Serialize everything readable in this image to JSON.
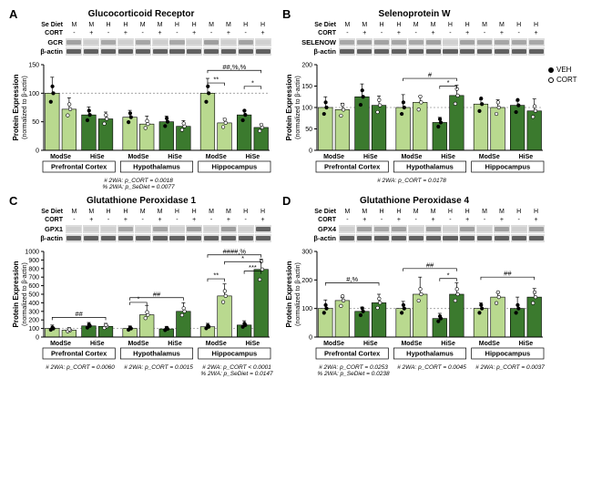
{
  "global": {
    "colors": {
      "modse_bar": "#b9d98f",
      "hise_bar": "#3b7a2e",
      "veh_dot_fill": "#000000",
      "cort_dot_fill": "#ffffff",
      "dot_stroke": "#000000",
      "axis": "#000000",
      "baseline_ref": "#9a9a9a",
      "band_dark": "#505050",
      "band_mid": "#8a8a8a",
      "band_light": "#c4c4c4",
      "lane_bg": "#dddddd"
    },
    "legend": {
      "veh": "VEH",
      "cort": "CORT"
    },
    "blot_headers": {
      "se_diet_label": "Se Diet",
      "cort_label": "CORT",
      "se_diet_cells": [
        "M",
        "M",
        "H",
        "H",
        "M",
        "M",
        "H",
        "H",
        "M",
        "M",
        "H",
        "H"
      ],
      "cort_cells": [
        "-",
        "+",
        "-",
        "+",
        "-",
        "+",
        "-",
        "+",
        "-",
        "+",
        "-",
        "+"
      ]
    },
    "diet_labels": [
      "ModSe",
      "HiSe",
      "ModSe",
      "HiSe",
      "ModSe",
      "HiSe"
    ],
    "region_labels": [
      "Prefrontal Cortex",
      "Hypothalamus",
      "Hippocampus"
    ],
    "ylabel_line1": "Protein Expression",
    "ylabel_line2": "(normalized to β-actin)",
    "baseline_ref_value": 100
  },
  "panels": {
    "A": {
      "letter": "A",
      "title": "Glucocorticoid Receptor",
      "blot_rows": [
        {
          "name": "GCR",
          "intensities": [
            0.55,
            0.35,
            0.4,
            0.3,
            0.45,
            0.35,
            0.4,
            0.3,
            0.6,
            0.3,
            0.5,
            0.25
          ]
        },
        {
          "name": "β-actin",
          "intensities": [
            0.8,
            0.8,
            0.8,
            0.8,
            0.8,
            0.8,
            0.8,
            0.8,
            0.8,
            0.8,
            0.8,
            0.8
          ]
        }
      ],
      "y_max": 150,
      "y_ticks": [
        0,
        50,
        100,
        150
      ],
      "groups": [
        {
          "mean": 100,
          "sd": 28,
          "se": "Mod",
          "cort": "-"
        },
        {
          "mean": 72,
          "sd": 20,
          "se": "Mod",
          "cort": "+"
        },
        {
          "mean": 62,
          "sd": 14,
          "se": "Hi",
          "cort": "-"
        },
        {
          "mean": 55,
          "sd": 12,
          "se": "Hi",
          "cort": "+"
        },
        {
          "mean": 58,
          "sd": 12,
          "se": "Mod",
          "cort": "-"
        },
        {
          "mean": 46,
          "sd": 14,
          "se": "Mod",
          "cort": "+"
        },
        {
          "mean": 50,
          "sd": 10,
          "se": "Hi",
          "cort": "-"
        },
        {
          "mean": 42,
          "sd": 10,
          "se": "Hi",
          "cort": "+"
        },
        {
          "mean": 100,
          "sd": 26,
          "se": "Mod",
          "cort": "-"
        },
        {
          "mean": 48,
          "sd": 8,
          "se": "Mod",
          "cort": "+"
        },
        {
          "mean": 62,
          "sd": 8,
          "se": "Hi",
          "cort": "-"
        },
        {
          "mean": 40,
          "sd": 6,
          "se": "Hi",
          "cort": "+"
        }
      ],
      "sig": [
        {
          "from": 8,
          "to": 11,
          "y": 140,
          "label": "##,%,%"
        },
        {
          "from": 8,
          "to": 9,
          "y": 118,
          "label": "**"
        },
        {
          "from": 10,
          "to": 11,
          "y": 112,
          "label": "*"
        }
      ],
      "stats": [
        "# 2WA: p_CORT = 0.0018",
        "% 2WA: p_SeDiet = 0.0077"
      ]
    },
    "B": {
      "letter": "B",
      "title": "Selenoprotein W",
      "blot_rows": [
        {
          "name": "SELENOW",
          "intensities": [
            0.4,
            0.5,
            0.5,
            0.45,
            0.4,
            0.55,
            0.25,
            0.5,
            0.45,
            0.45,
            0.45,
            0.4
          ]
        },
        {
          "name": "β-actin",
          "intensities": [
            0.8,
            0.8,
            0.8,
            0.8,
            0.8,
            0.8,
            0.8,
            0.8,
            0.8,
            0.8,
            0.8,
            0.8
          ]
        }
      ],
      "y_max": 200,
      "y_ticks": [
        0,
        50,
        100,
        150,
        200
      ],
      "groups": [
        {
          "mean": 100,
          "sd": 25,
          "se": "Mod",
          "cort": "-"
        },
        {
          "mean": 95,
          "sd": 15,
          "se": "Mod",
          "cort": "+"
        },
        {
          "mean": 125,
          "sd": 30,
          "se": "Hi",
          "cort": "-"
        },
        {
          "mean": 105,
          "sd": 22,
          "se": "Hi",
          "cort": "+"
        },
        {
          "mean": 100,
          "sd": 30,
          "se": "Mod",
          "cort": "-"
        },
        {
          "mean": 112,
          "sd": 15,
          "se": "Mod",
          "cort": "+"
        },
        {
          "mean": 65,
          "sd": 12,
          "se": "Hi",
          "cort": "-"
        },
        {
          "mean": 128,
          "sd": 24,
          "se": "Hi",
          "cort": "+"
        },
        {
          "mean": 108,
          "sd": 10,
          "se": "Mod",
          "cort": "-"
        },
        {
          "mean": 100,
          "sd": 18,
          "se": "Mod",
          "cort": "+"
        },
        {
          "mean": 105,
          "sd": 10,
          "se": "Hi",
          "cort": "-"
        },
        {
          "mean": 92,
          "sd": 28,
          "se": "Hi",
          "cort": "+"
        }
      ],
      "sig": [
        {
          "from": 4,
          "to": 7,
          "y": 168,
          "label": "#"
        },
        {
          "from": 6,
          "to": 7,
          "y": 150,
          "label": "*"
        }
      ],
      "stats": [
        "# 2WA: p_CORT = 0.0178"
      ]
    },
    "C": {
      "letter": "C",
      "title": "Glutathione Peroxidase 1",
      "blot_rows": [
        {
          "name": "GPX1",
          "intensities": [
            0.2,
            0.35,
            0.25,
            0.4,
            0.2,
            0.45,
            0.25,
            0.55,
            0.25,
            0.6,
            0.2,
            0.75
          ]
        },
        {
          "name": "β-actin",
          "intensities": [
            0.8,
            0.8,
            0.8,
            0.8,
            0.8,
            0.8,
            0.8,
            0.8,
            0.8,
            0.8,
            0.8,
            0.8
          ]
        }
      ],
      "y_max": 1000,
      "y_ticks": [
        0,
        100,
        200,
        300,
        400,
        500,
        600,
        700,
        800,
        900,
        1000
      ],
      "groups": [
        {
          "mean": 100,
          "sd": 40,
          "se": "Mod",
          "cort": "-"
        },
        {
          "mean": 80,
          "sd": 30,
          "se": "Mod",
          "cort": "+"
        },
        {
          "mean": 130,
          "sd": 40,
          "se": "Hi",
          "cort": "-"
        },
        {
          "mean": 125,
          "sd": 35,
          "se": "Hi",
          "cort": "+"
        },
        {
          "mean": 100,
          "sd": 30,
          "se": "Mod",
          "cort": "-"
        },
        {
          "mean": 260,
          "sd": 110,
          "se": "Mod",
          "cort": "+"
        },
        {
          "mean": 95,
          "sd": 30,
          "se": "Hi",
          "cort": "-"
        },
        {
          "mean": 300,
          "sd": 100,
          "se": "Hi",
          "cort": "+"
        },
        {
          "mean": 120,
          "sd": 40,
          "se": "Mod",
          "cort": "-"
        },
        {
          "mean": 480,
          "sd": 140,
          "se": "Mod",
          "cort": "+"
        },
        {
          "mean": 140,
          "sd": 50,
          "se": "Hi",
          "cort": "-"
        },
        {
          "mean": 790,
          "sd": 120,
          "se": "Hi",
          "cort": "+"
        }
      ],
      "sig": [
        {
          "from": 0,
          "to": 3,
          "y": 230,
          "label": "##"
        },
        {
          "from": 4,
          "to": 7,
          "y": 460,
          "label": "##"
        },
        {
          "from": 4,
          "to": 5,
          "y": 405,
          "label": "*"
        },
        {
          "from": 8,
          "to": 11,
          "y": 960,
          "label": "####,%"
        },
        {
          "from": 9,
          "to": 11,
          "y": 880,
          "label": "*"
        },
        {
          "from": 8,
          "to": 9,
          "y": 680,
          "label": "**"
        },
        {
          "from": 10,
          "to": 11,
          "y": 770,
          "label": "***"
        }
      ],
      "stats": [
        "# 2WA: p_CORT = 0.0060",
        "# 2WA: p_CORT = 0.0015",
        "# 2WA: p_CORT < 0.0001",
        "% 2WA: p_SeDiet = 0.0147"
      ],
      "stats_cols": [
        [
          0
        ],
        [
          1
        ],
        [
          2,
          3
        ]
      ]
    },
    "D": {
      "letter": "D",
      "title": "Glutathione Peroxidase 4",
      "blot_rows": [
        {
          "name": "GPX4",
          "intensities": [
            0.35,
            0.5,
            0.4,
            0.5,
            0.35,
            0.55,
            0.3,
            0.55,
            0.35,
            0.55,
            0.3,
            0.55
          ]
        },
        {
          "name": "β-actin",
          "intensities": [
            0.8,
            0.8,
            0.8,
            0.8,
            0.8,
            0.8,
            0.8,
            0.8,
            0.8,
            0.8,
            0.8,
            0.8
          ]
        }
      ],
      "y_max": 300,
      "y_ticks": [
        0,
        100,
        200,
        300
      ],
      "groups": [
        {
          "mean": 100,
          "sd": 30,
          "se": "Mod",
          "cort": "-"
        },
        {
          "mean": 128,
          "sd": 10,
          "se": "Mod",
          "cort": "+"
        },
        {
          "mean": 90,
          "sd": 15,
          "se": "Hi",
          "cort": "-"
        },
        {
          "mean": 120,
          "sd": 30,
          "se": "Hi",
          "cort": "+"
        },
        {
          "mean": 100,
          "sd": 25,
          "se": "Mod",
          "cort": "-"
        },
        {
          "mean": 150,
          "sd": 60,
          "se": "Mod",
          "cort": "+"
        },
        {
          "mean": 65,
          "sd": 18,
          "se": "Hi",
          "cort": "-"
        },
        {
          "mean": 150,
          "sd": 40,
          "se": "Hi",
          "cort": "+"
        },
        {
          "mean": 100,
          "sd": 20,
          "se": "Mod",
          "cort": "-"
        },
        {
          "mean": 140,
          "sd": 15,
          "se": "Mod",
          "cort": "+"
        },
        {
          "mean": 100,
          "sd": 40,
          "se": "Hi",
          "cort": "-"
        },
        {
          "mean": 140,
          "sd": 30,
          "se": "Hi",
          "cort": "+"
        }
      ],
      "sig": [
        {
          "from": 0,
          "to": 3,
          "y": 190,
          "label": "#,%"
        },
        {
          "from": 4,
          "to": 7,
          "y": 240,
          "label": "##"
        },
        {
          "from": 6,
          "to": 7,
          "y": 205,
          "label": "*"
        },
        {
          "from": 8,
          "to": 11,
          "y": 210,
          "label": "##"
        }
      ],
      "stats": [
        "# 2WA: p_CORT = 0.0253",
        "# 2WA: p_CORT = 0.0045",
        "# 2WA: p_CORT = 0.0037",
        "% 2WA: p_SeDiet = 0.0238"
      ],
      "stats_cols": [
        [
          0,
          3
        ],
        [
          1
        ],
        [
          2
        ]
      ]
    }
  }
}
